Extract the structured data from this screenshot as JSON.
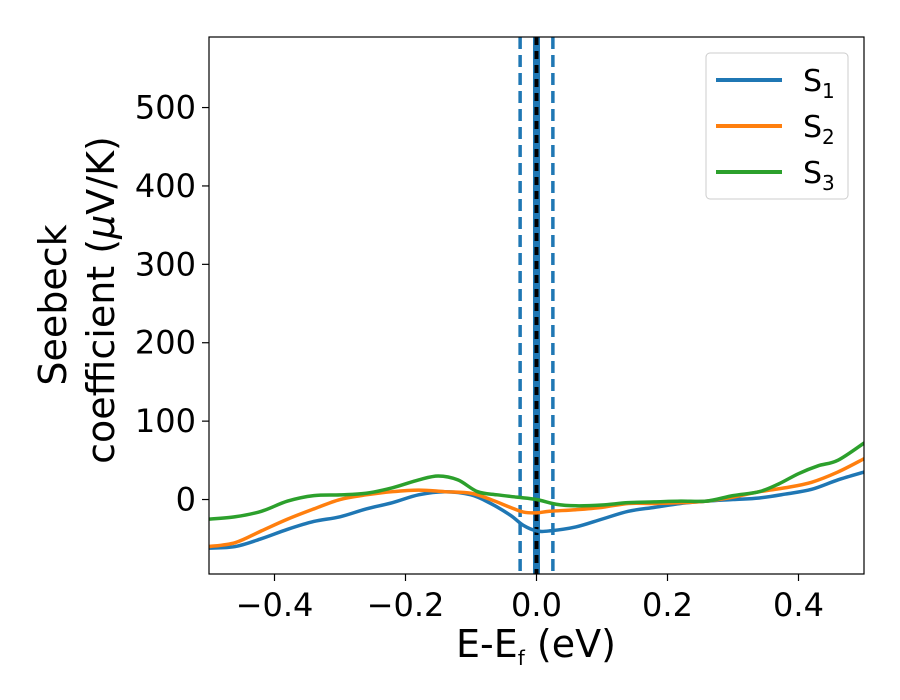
{
  "chart_data": {
    "type": "line",
    "title": "",
    "xlabel_main": "E-E",
    "xlabel_sub": "f",
    "xlabel_tail": " (eV)",
    "ylabel_line1": "Seebeck",
    "ylabel_line2_prefix": "coefficient  (",
    "ylabel_mu": "μ",
    "ylabel_line2_suffix": "V/K)",
    "xlim": [
      -0.5,
      0.5
    ],
    "ylim": [
      -95,
      590
    ],
    "xticks": [
      -0.4,
      -0.2,
      0.0,
      0.2,
      0.4
    ],
    "xtick_labels": [
      "−0.4",
      "−0.2",
      "0.0",
      "0.2",
      "0.4"
    ],
    "yticks": [
      0,
      100,
      200,
      300,
      400,
      500
    ],
    "ytick_labels": [
      "0",
      "100",
      "200",
      "300",
      "400",
      "500"
    ],
    "grid": false,
    "legend_position": "top-right",
    "series": [
      {
        "name_main": "S",
        "name_sub": "1",
        "color": "#1f77b4",
        "x": [
          -0.5,
          -0.46,
          -0.42,
          -0.38,
          -0.34,
          -0.3,
          -0.26,
          -0.22,
          -0.18,
          -0.14,
          -0.1,
          -0.07,
          -0.04,
          -0.02,
          0.0,
          0.02,
          0.06,
          0.1,
          0.14,
          0.18,
          0.22,
          0.26,
          0.3,
          0.34,
          0.38,
          0.42,
          0.46,
          0.5
        ],
        "y": [
          -62,
          -60,
          -50,
          -38,
          -28,
          -22,
          -12,
          -4,
          6,
          10,
          6,
          -5,
          -20,
          -33,
          -40,
          -40,
          -35,
          -25,
          -15,
          -10,
          -5,
          -2,
          0,
          2,
          7,
          13,
          25,
          35
        ]
      },
      {
        "name_main": "S",
        "name_sub": "2",
        "color": "#ff7f0e",
        "x": [
          -0.5,
          -0.46,
          -0.42,
          -0.38,
          -0.34,
          -0.3,
          -0.26,
          -0.22,
          -0.18,
          -0.14,
          -0.1,
          -0.07,
          -0.04,
          -0.02,
          0.0,
          0.02,
          0.06,
          0.1,
          0.14,
          0.18,
          0.22,
          0.26,
          0.3,
          0.34,
          0.38,
          0.42,
          0.46,
          0.5
        ],
        "y": [
          -60,
          -55,
          -40,
          -25,
          -12,
          0,
          6,
          10,
          12,
          10,
          8,
          0,
          -10,
          -16,
          -17,
          -15,
          -13,
          -10,
          -5,
          -5,
          -4,
          -2,
          3,
          10,
          15,
          22,
          35,
          52
        ]
      },
      {
        "name_main": "S",
        "name_sub": "3",
        "color": "#2ca02c",
        "x": [
          -0.5,
          -0.46,
          -0.42,
          -0.38,
          -0.34,
          -0.3,
          -0.26,
          -0.22,
          -0.18,
          -0.15,
          -0.12,
          -0.09,
          -0.06,
          -0.03,
          0.0,
          0.03,
          0.06,
          0.1,
          0.14,
          0.18,
          0.22,
          0.26,
          0.3,
          0.34,
          0.37,
          0.4,
          0.43,
          0.46,
          0.5
        ],
        "y": [
          -25,
          -22,
          -15,
          -2,
          5,
          6,
          8,
          15,
          25,
          30,
          25,
          10,
          6,
          3,
          0,
          -6,
          -8,
          -7,
          -4,
          -3,
          -2,
          -2,
          5,
          10,
          20,
          33,
          43,
          50,
          72
        ]
      }
    ],
    "vlines": [
      {
        "x": -0.025,
        "color": "#1f77b4",
        "style": "dashed"
      },
      {
        "x": 0.0,
        "color": "#1f77b4",
        "style": "solid-thick"
      },
      {
        "x": 0.0,
        "color": "#000000",
        "style": "dotted"
      },
      {
        "x": 0.025,
        "color": "#1f77b4",
        "style": "dashed"
      }
    ]
  }
}
